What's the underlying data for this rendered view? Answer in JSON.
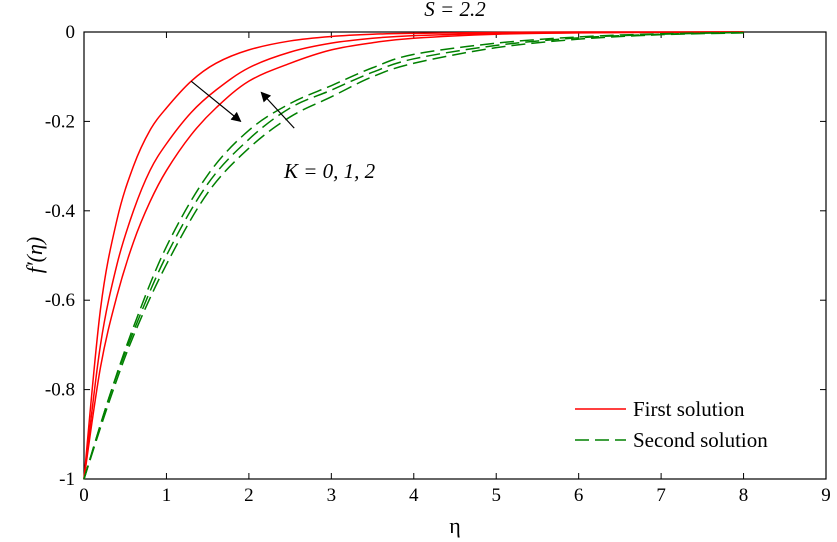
{
  "chart_data": {
    "type": "line",
    "title": "S = 2.2",
    "xlabel": "η",
    "ylabel": "f′(η)",
    "xlim": [
      0,
      9
    ],
    "ylim": [
      -1,
      0
    ],
    "xticks": [
      0,
      1,
      2,
      3,
      4,
      5,
      6,
      7,
      8,
      9
    ],
    "yticks": [
      0,
      -0.2,
      -0.4,
      -0.6,
      -0.8,
      -1
    ],
    "xtick_labels": [
      "0",
      "1",
      "2",
      "3",
      "4",
      "5",
      "6",
      "7",
      "8",
      "9"
    ],
    "ytick_labels": [
      "0",
      "-0.2",
      "-0.4",
      "-0.6",
      "-0.8",
      "-1"
    ],
    "grid": false,
    "legend_position": "bottom-right",
    "legend": [
      {
        "label": "First solution",
        "color": "#ff0000",
        "style": "solid"
      },
      {
        "label": "Second solution",
        "color": "#008000",
        "style": "dashed"
      }
    ],
    "annotation": "K = 0, 1,  2",
    "series": [
      {
        "group": "First solution",
        "K": 0,
        "color": "#ff0000",
        "style": "solid",
        "x": [
          0,
          0.2,
          0.4,
          0.6,
          0.8,
          1.0,
          1.3,
          1.6,
          2.0,
          2.5,
          3.0,
          3.5,
          4.0,
          5.0,
          6.0,
          8.0
        ],
        "y": [
          -1,
          -0.62,
          -0.42,
          -0.3,
          -0.22,
          -0.17,
          -0.11,
          -0.07,
          -0.04,
          -0.02,
          -0.01,
          -0.005,
          -0.003,
          -0.001,
          0,
          0
        ]
      },
      {
        "group": "First solution",
        "K": 1,
        "color": "#ff0000",
        "style": "solid",
        "x": [
          0,
          0.2,
          0.4,
          0.6,
          0.8,
          1.0,
          1.3,
          1.6,
          2.0,
          2.5,
          3.0,
          3.5,
          4.0,
          5.0,
          6.0,
          8.0
        ],
        "y": [
          -1,
          -0.7,
          -0.52,
          -0.4,
          -0.31,
          -0.25,
          -0.18,
          -0.13,
          -0.08,
          -0.045,
          -0.025,
          -0.014,
          -0.008,
          -0.003,
          -0.001,
          0
        ]
      },
      {
        "group": "First solution",
        "K": 2,
        "color": "#ff0000",
        "style": "solid",
        "x": [
          0,
          0.2,
          0.4,
          0.6,
          0.8,
          1.0,
          1.3,
          1.6,
          2.0,
          2.5,
          3.0,
          3.5,
          4.0,
          5.0,
          6.0,
          8.0
        ],
        "y": [
          -1,
          -0.75,
          -0.59,
          -0.47,
          -0.38,
          -0.31,
          -0.23,
          -0.17,
          -0.11,
          -0.07,
          -0.04,
          -0.024,
          -0.014,
          -0.005,
          -0.002,
          0
        ]
      },
      {
        "group": "Second solution",
        "K": 0,
        "color": "#008000",
        "style": "dashed",
        "x": [
          0,
          0.3,
          0.6,
          1.0,
          1.5,
          2.0,
          2.5,
          3.0,
          3.5,
          4.0,
          5.0,
          6.0,
          7.0,
          8.0
        ],
        "y": [
          -1,
          -0.82,
          -0.66,
          -0.48,
          -0.32,
          -0.22,
          -0.16,
          -0.12,
          -0.08,
          -0.05,
          -0.025,
          -0.011,
          -0.004,
          -0.001
        ]
      },
      {
        "group": "Second solution",
        "K": 1,
        "color": "#008000",
        "style": "dashed",
        "x": [
          0,
          0.3,
          0.6,
          1.0,
          1.5,
          2.0,
          2.5,
          3.0,
          3.5,
          4.0,
          5.0,
          6.0,
          7.0,
          8.0
        ],
        "y": [
          -1,
          -0.82,
          -0.67,
          -0.5,
          -0.34,
          -0.24,
          -0.17,
          -0.13,
          -0.09,
          -0.06,
          -0.03,
          -0.013,
          -0.005,
          -0.001
        ]
      },
      {
        "group": "Second solution",
        "K": 2,
        "color": "#008000",
        "style": "dashed",
        "x": [
          0,
          0.3,
          0.6,
          1.0,
          1.5,
          2.0,
          2.5,
          3.0,
          3.5,
          4.0,
          5.0,
          6.0,
          7.0,
          8.0
        ],
        "y": [
          -1,
          -0.83,
          -0.68,
          -0.52,
          -0.36,
          -0.26,
          -0.19,
          -0.145,
          -0.1,
          -0.07,
          -0.035,
          -0.016,
          -0.006,
          -0.002
        ]
      }
    ],
    "arrows": [
      {
        "direction": "decreasing",
        "from": [
          1.3,
          -0.11
        ],
        "to": [
          1.9,
          -0.2
        ]
      },
      {
        "direction": "increasing",
        "from": [
          2.55,
          -0.215
        ],
        "to": [
          2.15,
          -0.135
        ]
      }
    ]
  }
}
